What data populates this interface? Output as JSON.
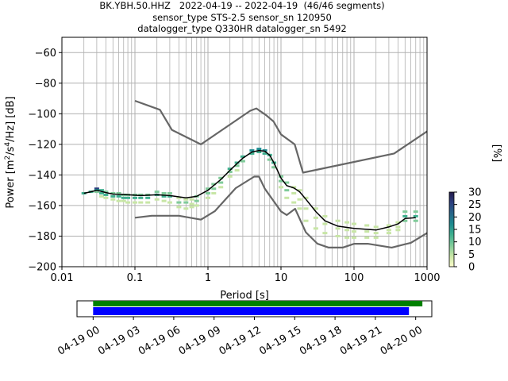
{
  "title": {
    "line1": "BK.YBH.50.HHZ   2022-04-19 -- 2022-04-19  (46/46 segments)",
    "line2": "sensor_type STS-2.5 sensor_sn 120950",
    "line3": "datalogger_type Q330HR datalogger_sn 5492"
  },
  "colors": {
    "nlnm_nhnm": "#666666",
    "mean_line": "#000000",
    "grid": "#b0b0b0",
    "coverage_data": "#008000",
    "coverage_gaps": "#0000ff",
    "colormap": [
      "#fdfdcc",
      "#c8e6a6",
      "#80cb9a",
      "#3fb08f",
      "#1d8a8f",
      "#276588",
      "#2c3f7f",
      "#241b4b"
    ]
  },
  "chart_data": [
    {
      "type": "heatmap",
      "xlabel": "Period [s]",
      "ylabel": "Power [m²/s⁴/Hz] [dB]",
      "xscale": "log",
      "xlim": [
        0.01,
        1000
      ],
      "ylim": [
        -200,
        -50
      ],
      "x_ticks": [
        {
          "v": 0.01,
          "label": "0.01"
        },
        {
          "v": 0.1,
          "label": "0.1"
        },
        {
          "v": 1,
          "label": "1"
        },
        {
          "v": 10,
          "label": "10"
        },
        {
          "v": 100,
          "label": "100"
        },
        {
          "v": 1000,
          "label": "1000"
        }
      ],
      "y_ticks": [
        {
          "v": -60,
          "label": "−60"
        },
        {
          "v": -80,
          "label": "−80"
        },
        {
          "v": -100,
          "label": "−100"
        },
        {
          "v": -120,
          "label": "−120"
        },
        {
          "v": -140,
          "label": "−140"
        },
        {
          "v": -160,
          "label": "−160"
        },
        {
          "v": -180,
          "label": "−180"
        },
        {
          "v": -200,
          "label": "−200"
        }
      ],
      "grid": true,
      "colorbar": {
        "label": "[%]",
        "range": [
          0,
          30
        ],
        "ticks": [
          {
            "v": 0,
            "label": "0"
          },
          {
            "v": 5,
            "label": "5"
          },
          {
            "v": 10,
            "label": "10"
          },
          {
            "v": 15,
            "label": "15"
          },
          {
            "v": 20,
            "label": "20"
          },
          {
            "v": 25,
            "label": "25"
          },
          {
            "v": 30,
            "label": "30"
          }
        ]
      },
      "series": [
        {
          "kind": "nhnm",
          "points": [
            [
              0.1,
              -91.5
            ],
            [
              0.22,
              -97.4
            ],
            [
              0.32,
              -110.5
            ],
            [
              0.8,
              -120
            ],
            [
              3.8,
              -98
            ],
            [
              4.6,
              -96.5
            ],
            [
              6.3,
              -101
            ],
            [
              7.9,
              -105
            ],
            [
              10,
              -113.5
            ],
            [
              15.4,
              -120
            ],
            [
              20,
              -138.5
            ],
            [
              354,
              -126
            ],
            [
              1000,
              -111.5
            ]
          ]
        },
        {
          "kind": "nlnm",
          "points": [
            [
              0.1,
              -168
            ],
            [
              0.17,
              -166.7
            ],
            [
              0.4,
              -166.7
            ],
            [
              0.8,
              -169.2
            ],
            [
              1.24,
              -163.7
            ],
            [
              2.4,
              -148.6
            ],
            [
              4.3,
              -141.1
            ],
            [
              5,
              -141.1
            ],
            [
              6,
              -149
            ],
            [
              10,
              -163.8
            ],
            [
              12,
              -166.2
            ],
            [
              15.6,
              -162.1
            ],
            [
              21.9,
              -177.5
            ],
            [
              31.6,
              -185
            ],
            [
              45,
              -187.5
            ],
            [
              70,
              -187.5
            ],
            [
              101,
              -185
            ],
            [
              154,
              -185
            ],
            [
              328,
              -187.5
            ],
            [
              600,
              -184.4
            ],
            [
              1000,
              -178
            ]
          ]
        },
        {
          "kind": "mean",
          "points": [
            [
              0.02,
              -152
            ],
            [
              0.025,
              -151
            ],
            [
              0.03,
              -150
            ],
            [
              0.04,
              -151.5
            ],
            [
              0.05,
              -152.5
            ],
            [
              0.08,
              -153
            ],
            [
              0.12,
              -153.5
            ],
            [
              0.2,
              -153
            ],
            [
              0.3,
              -153.5
            ],
            [
              0.5,
              -155
            ],
            [
              0.7,
              -154
            ],
            [
              1,
              -150
            ],
            [
              1.5,
              -143
            ],
            [
              2,
              -137
            ],
            [
              3,
              -129
            ],
            [
              4,
              -125
            ],
            [
              5,
              -124
            ],
            [
              6,
              -124.5
            ],
            [
              7,
              -127
            ],
            [
              8,
              -132
            ],
            [
              10,
              -142
            ],
            [
              12,
              -147
            ],
            [
              15,
              -148.5
            ],
            [
              18,
              -151
            ],
            [
              22,
              -156
            ],
            [
              30,
              -164
            ],
            [
              40,
              -170
            ],
            [
              60,
              -173.5
            ],
            [
              100,
              -175
            ],
            [
              200,
              -176
            ],
            [
              300,
              -174
            ],
            [
              400,
              -172
            ],
            [
              500,
              -168.5
            ],
            [
              700,
              -168
            ]
          ]
        }
      ],
      "histogram": [
        {
          "p": 0.02,
          "bins": [
            [
              -152,
              12
            ]
          ]
        },
        {
          "p": 0.025,
          "bins": [
            [
              -151,
              14
            ]
          ]
        },
        {
          "p": 0.03,
          "bins": [
            [
              -149,
              25
            ],
            [
              -150,
              18
            ],
            [
              -151,
              8
            ]
          ]
        },
        {
          "p": 0.035,
          "bins": [
            [
              -150,
              12
            ],
            [
              -152,
              14
            ],
            [
              -154,
              5
            ]
          ]
        },
        {
          "p": 0.04,
          "bins": [
            [
              -151,
              10
            ],
            [
              -153,
              12
            ],
            [
              -155,
              4
            ]
          ]
        },
        {
          "p": 0.05,
          "bins": [
            [
              -152,
              10
            ],
            [
              -154,
              12
            ],
            [
              -156,
              4
            ]
          ]
        },
        {
          "p": 0.06,
          "bins": [
            [
              -152,
              9
            ],
            [
              -154,
              12
            ],
            [
              -157,
              4
            ]
          ]
        },
        {
          "p": 0.07,
          "bins": [
            [
              -153,
              9
            ],
            [
              -155,
              12
            ],
            [
              -157,
              3
            ]
          ]
        },
        {
          "p": 0.08,
          "bins": [
            [
              -153,
              9
            ],
            [
              -155,
              12
            ],
            [
              -158,
              3
            ]
          ]
        },
        {
          "p": 0.1,
          "bins": [
            [
              -153,
              9
            ],
            [
              -155,
              12
            ],
            [
              -158,
              4
            ]
          ]
        },
        {
          "p": 0.12,
          "bins": [
            [
              -153,
              9
            ],
            [
              -155,
              12
            ],
            [
              -158,
              4
            ]
          ]
        },
        {
          "p": 0.15,
          "bins": [
            [
              -153,
              9
            ],
            [
              -155,
              12
            ],
            [
              -158,
              4
            ]
          ]
        },
        {
          "p": 0.2,
          "bins": [
            [
              -151,
              8
            ],
            [
              -153,
              12
            ],
            [
              -156,
              5
            ]
          ]
        },
        {
          "p": 0.25,
          "bins": [
            [
              -152,
              8
            ],
            [
              -154,
              12
            ],
            [
              -157,
              5
            ]
          ]
        },
        {
          "p": 0.3,
          "bins": [
            [
              -152,
              9
            ],
            [
              -154,
              12
            ],
            [
              -158,
              5
            ]
          ]
        },
        {
          "p": 0.4,
          "bins": [
            [
              -155,
              6
            ],
            [
              -158,
              8
            ],
            [
              -161,
              4
            ]
          ]
        },
        {
          "p": 0.5,
          "bins": [
            [
              -156,
              6
            ],
            [
              -158,
              8
            ],
            [
              -162,
              4
            ]
          ]
        },
        {
          "p": 0.6,
          "bins": [
            [
              -156,
              6
            ],
            [
              -159,
              6
            ],
            [
              -161,
              4
            ]
          ]
        },
        {
          "p": 0.7,
          "bins": [
            [
              -154,
              8
            ],
            [
              -157,
              8
            ],
            [
              -160,
              3
            ]
          ]
        },
        {
          "p": 1,
          "bins": [
            [
              -149,
              9
            ],
            [
              -152,
              8
            ],
            [
              -155,
              3
            ]
          ]
        },
        {
          "p": 1.2,
          "bins": [
            [
              -146,
              9
            ],
            [
              -149,
              8
            ],
            [
              -152,
              3
            ]
          ]
        },
        {
          "p": 1.5,
          "bins": [
            [
              -142,
              9
            ],
            [
              -145,
              8
            ],
            [
              -148,
              3
            ]
          ]
        },
        {
          "p": 2,
          "bins": [
            [
              -136,
              11
            ],
            [
              -138,
              10
            ],
            [
              -141,
              3
            ]
          ]
        },
        {
          "p": 2.5,
          "bins": [
            [
              -132,
              12
            ],
            [
              -134,
              10
            ],
            [
              -137,
              3
            ]
          ]
        },
        {
          "p": 3,
          "bins": [
            [
              -128,
              14
            ],
            [
              -131,
              10
            ]
          ]
        },
        {
          "p": 4,
          "bins": [
            [
              -124,
              16
            ],
            [
              -126,
              12
            ]
          ]
        },
        {
          "p": 5,
          "bins": [
            [
              -123,
              18
            ],
            [
              -125,
              12
            ]
          ]
        },
        {
          "p": 6,
          "bins": [
            [
              -124,
              16
            ],
            [
              -126,
              12
            ]
          ]
        },
        {
          "p": 7,
          "bins": [
            [
              -127,
              14
            ],
            [
              -130,
              10
            ]
          ]
        },
        {
          "p": 8,
          "bins": [
            [
              -132,
              12
            ],
            [
              -135,
              8
            ]
          ]
        },
        {
          "p": 10,
          "bins": [
            [
              -141,
              10
            ],
            [
              -144,
              8
            ],
            [
              -148,
              3
            ]
          ]
        },
        {
          "p": 12,
          "bins": [
            [
              -145,
              8
            ],
            [
              -150,
              8
            ],
            [
              -155,
              4
            ]
          ]
        },
        {
          "p": 15,
          "bins": [
            [
              -148,
              6
            ],
            [
              -152,
              6
            ],
            [
              -158,
              4
            ]
          ]
        },
        {
          "p": 18,
          "bins": [
            [
              -150,
              5
            ],
            [
              -156,
              5
            ],
            [
              -162,
              4
            ]
          ]
        },
        {
          "p": 22,
          "bins": [
            [
              -155,
              4
            ],
            [
              -162,
              4
            ],
            [
              -170,
              3
            ]
          ]
        },
        {
          "p": 30,
          "bins": [
            [
              -162,
              4
            ],
            [
              -168,
              4
            ],
            [
              -175,
              3
            ]
          ]
        },
        {
          "p": 40,
          "bins": [
            [
              -167,
              4
            ],
            [
              -172,
              5
            ],
            [
              -178,
              4
            ]
          ]
        },
        {
          "p": 60,
          "bins": [
            [
              -170,
              4
            ],
            [
              -175,
              6
            ],
            [
              -180,
              5
            ]
          ]
        },
        {
          "p": 80,
          "bins": [
            [
              -171,
              4
            ],
            [
              -176,
              6
            ],
            [
              -181,
              5
            ]
          ]
        },
        {
          "p": 100,
          "bins": [
            [
              -172,
              4
            ],
            [
              -177,
              6
            ],
            [
              -181,
              6
            ]
          ]
        },
        {
          "p": 150,
          "bins": [
            [
              -173,
              4
            ],
            [
              -177,
              6
            ],
            [
              -181,
              6
            ]
          ]
        },
        {
          "p": 200,
          "bins": [
            [
              -174,
              4
            ],
            [
              -178,
              6
            ],
            [
              -181,
              6
            ]
          ]
        },
        {
          "p": 300,
          "bins": [
            [
              -173,
              5
            ],
            [
              -176,
              6
            ],
            [
              -178,
              5
            ]
          ]
        },
        {
          "p": 400,
          "bins": [
            [
              -171,
              5
            ],
            [
              -174,
              6
            ],
            [
              -176,
              5
            ]
          ]
        },
        {
          "p": 500,
          "bins": [
            [
              -164,
              8
            ],
            [
              -167,
              12
            ],
            [
              -170,
              8
            ]
          ]
        },
        {
          "p": 700,
          "bins": [
            [
              -164,
              8
            ],
            [
              -167,
              12
            ],
            [
              -170,
              8
            ]
          ]
        }
      ]
    },
    {
      "type": "bar",
      "role": "data-coverage",
      "x_ticks": [
        {
          "h": 0,
          "label": "04-19 00"
        },
        {
          "h": 3,
          "label": "04-19 03"
        },
        {
          "h": 6,
          "label": "04-19 06"
        },
        {
          "h": 9,
          "label": "04-19 09"
        },
        {
          "h": 12,
          "label": "04-19 12"
        },
        {
          "h": 15,
          "label": "04-19 15"
        },
        {
          "h": 18,
          "label": "04-19 18"
        },
        {
          "h": 21,
          "label": "04-19 21"
        },
        {
          "h": 24,
          "label": "04-20 00"
        }
      ],
      "xlim_hours": [
        -1.2,
        25.2
      ],
      "bars": [
        {
          "kind": "data",
          "start_h": 0,
          "end_h": 24.5
        },
        {
          "kind": "used",
          "start_h": 0,
          "end_h": 23.5
        }
      ]
    }
  ]
}
